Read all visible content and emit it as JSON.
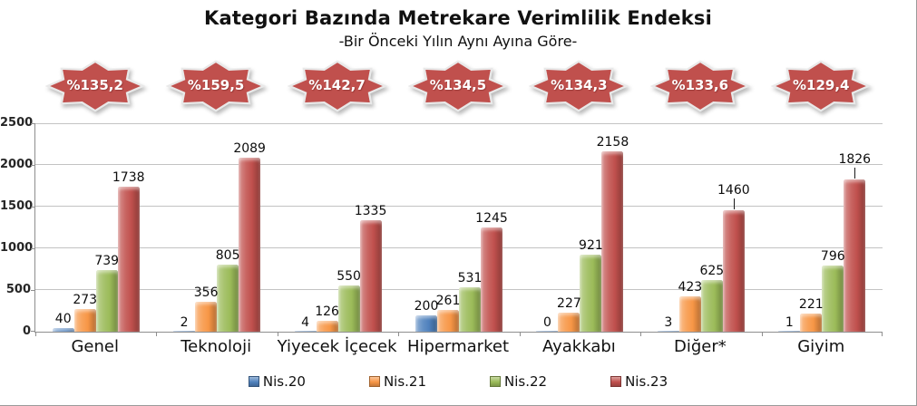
{
  "header": {
    "title": "Kategori Bazında Metrekare Verimlilik Endeksi",
    "subtitle": "-Bir Önceki Yılın Aynı Ayına Göre-"
  },
  "badges": {
    "shape": "eight-point-star-seal",
    "fill_color": "#C0504D",
    "stroke_color": "#E9E9E9",
    "text_color": "#FFFFFF",
    "values": [
      "%135,2",
      "%159,5",
      "%142,7",
      "%134,5",
      "%134,3",
      "%133,6",
      "%129,4"
    ]
  },
  "chart_data": {
    "type": "bar",
    "title": "Kategori Bazında Metrekare Verimlilik Endeksi",
    "subtitle": "-Bir Önceki Yılın Aynı Ayına Göre-",
    "categories": [
      "Genel",
      "Teknoloji",
      "Yiyecek İçecek",
      "Hipermarket",
      "Ayakkabı",
      "Diğer*",
      "Giyim"
    ],
    "series": [
      {
        "name": "Nis.20",
        "color": "#4F81BD",
        "values": [
          40,
          2,
          4,
          200,
          0,
          3,
          1
        ]
      },
      {
        "name": "Nis.21",
        "color": "#F79646",
        "values": [
          273,
          356,
          126,
          261,
          227,
          423,
          221
        ]
      },
      {
        "name": "Nis.22",
        "color": "#9BBB59",
        "values": [
          739,
          805,
          550,
          531,
          921,
          625,
          796
        ]
      },
      {
        "name": "Nis.23",
        "color": "#C0504D",
        "values": [
          1738,
          2089,
          1335,
          1245,
          2158,
          1460,
          1826
        ]
      }
    ],
    "ylim": [
      0,
      2500
    ],
    "yticks": [
      0,
      500,
      1000,
      1500,
      2000,
      2500
    ],
    "grid": true,
    "data_labels": true,
    "legend_position": "bottom",
    "label_leader_lines": [
      {
        "category": "Diğer*",
        "series": "Nis.23"
      },
      {
        "category": "Giyim",
        "series": "Nis.23"
      }
    ],
    "axis_color": "#8E8E8E",
    "gridline_color": "#C3C3C3"
  }
}
